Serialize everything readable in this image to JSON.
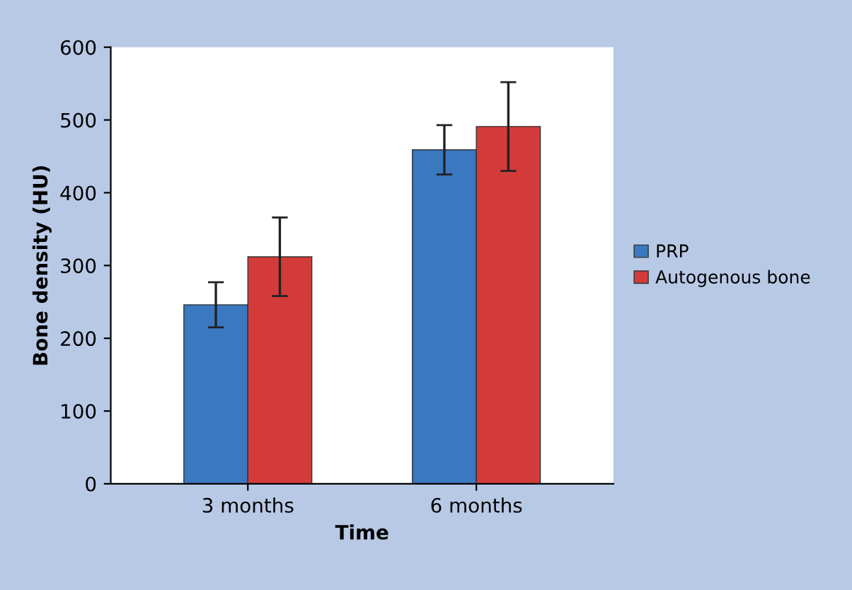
{
  "chart_data": {
    "type": "bar",
    "xlabel": "Time",
    "ylabel": "Bone density (HU)",
    "categories": [
      "3 months",
      "6 months"
    ],
    "series": [
      {
        "name": "PRP",
        "color": "#3a78c0",
        "values": [
          246,
          459
        ],
        "errors": [
          31,
          34
        ]
      },
      {
        "name": "Autogenous bone",
        "color": "#d33b3b",
        "values": [
          312,
          491
        ],
        "errors": [
          54,
          61
        ]
      }
    ],
    "ylim": [
      0,
      600
    ],
    "yticks": [
      0,
      100,
      200,
      300,
      400,
      500,
      600
    ],
    "grid": false,
    "legend": "right"
  }
}
